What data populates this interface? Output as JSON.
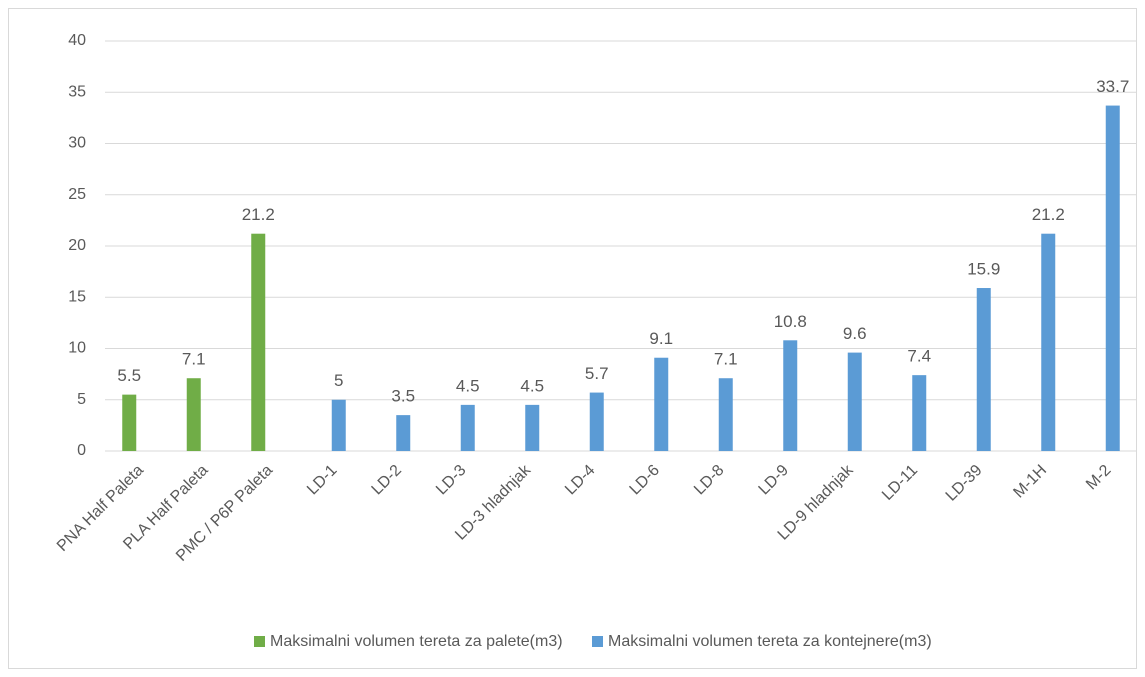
{
  "chart_data": {
    "type": "bar",
    "categories": [
      "PNA Half Paleta",
      "PLA Half Paleta",
      "PMC / P6P Paleta",
      "LD-1",
      "LD-2",
      "LD-3",
      "LD-3 hladnjak",
      "LD-4",
      "LD-6",
      "LD-8",
      "LD-9",
      "LD-9 hladnjak",
      "LD-11",
      "LD-39",
      "M-1H",
      "M-2"
    ],
    "series": [
      {
        "name": "Maksimalni volumen tereta za palete(m3)",
        "color": "#70ad47",
        "values": [
          5.5,
          7.1,
          21.2,
          null,
          null,
          null,
          null,
          null,
          null,
          null,
          null,
          null,
          null,
          null,
          null,
          null
        ]
      },
      {
        "name": "Maksimalni volumen tereta za kontejnere(m3)",
        "color": "#5b9bd5",
        "values": [
          null,
          null,
          null,
          5,
          3.5,
          4.5,
          4.5,
          5.7,
          9.1,
          7.1,
          10.8,
          9.6,
          7.4,
          15.9,
          21.2,
          33.7
        ]
      }
    ],
    "ylim": [
      0,
      40
    ],
    "yticks": [
      0,
      5,
      10,
      15,
      20,
      25,
      30,
      35,
      40
    ],
    "grid": true,
    "legend": "bottom"
  }
}
